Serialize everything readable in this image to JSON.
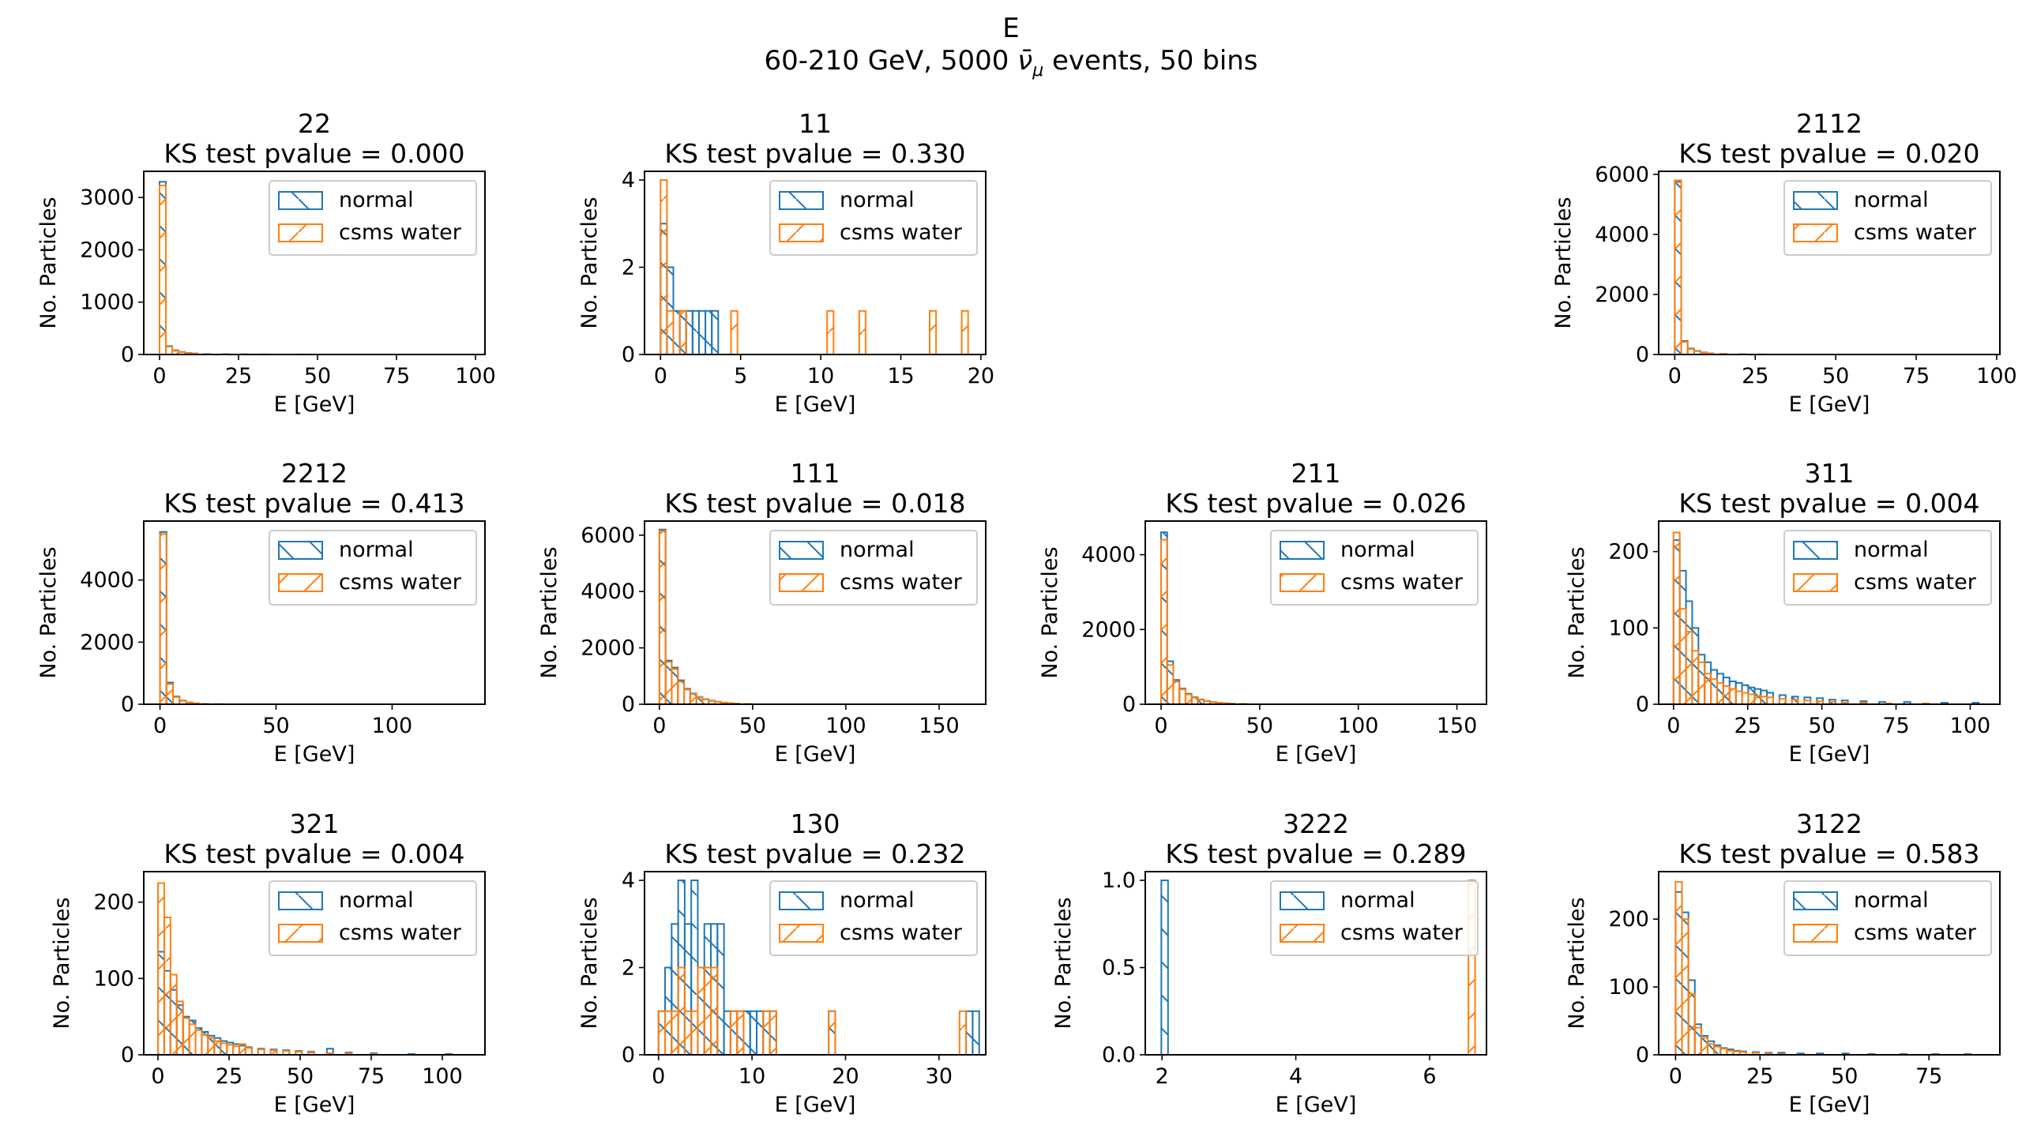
{
  "figure": {
    "title": "E",
    "subtitle_prefix": "60-210 GeV, 5000 ",
    "subtitle_symbol": "ν̄",
    "subtitle_symbol_sub": "μ",
    "subtitle_suffix": " events, 50 bins"
  },
  "colors": {
    "normal": "#1f77b4",
    "csms": "#ff7f0e"
  },
  "common": {
    "xlabel": "E [GeV]",
    "ylabel": "No. Particles",
    "legend": [
      "normal",
      "csms water"
    ]
  },
  "chart_data": [
    {
      "type": "histogram",
      "row": 0,
      "col": 0,
      "title": "22",
      "subtitle": "KS test pvalue = 0.000",
      "xlim": [
        -5,
        103
      ],
      "ylim": [
        0,
        3500
      ],
      "xticks": [
        0,
        25,
        50,
        75,
        100
      ],
      "xticklabels": [
        "0",
        "25",
        "50",
        "75",
        "100"
      ],
      "yticks": [
        0,
        1000,
        2000,
        3000
      ],
      "yticklabels": [
        "0",
        "1000",
        "2000",
        "3000"
      ],
      "series": [
        {
          "name": "normal",
          "x": [
            0,
            2,
            4,
            6,
            8,
            10,
            14,
            20,
            26,
            32,
            44
          ],
          "y": [
            3300,
            160,
            80,
            50,
            30,
            20,
            10,
            6,
            4,
            2,
            1
          ],
          "w": 2
        },
        {
          "name": "csms water",
          "x": [
            0,
            2,
            4,
            6,
            8,
            10,
            14,
            20,
            26,
            32
          ],
          "y": [
            3230,
            150,
            70,
            45,
            25,
            18,
            8,
            5,
            3,
            1
          ],
          "w": 2
        }
      ]
    },
    {
      "type": "histogram",
      "row": 0,
      "col": 1,
      "title": "11",
      "subtitle": "KS test pvalue = 0.330",
      "xlim": [
        -1,
        20.3
      ],
      "ylim": [
        0,
        4.2
      ],
      "xticks": [
        0,
        5,
        10,
        15,
        20
      ],
      "xticklabels": [
        "0",
        "5",
        "10",
        "15",
        "20"
      ],
      "yticks": [
        0,
        2,
        4
      ],
      "yticklabels": [
        "0",
        "2",
        "4"
      ],
      "series": [
        {
          "name": "normal",
          "x": [
            0,
            0.4,
            0.8,
            1.2,
            1.6,
            2.0,
            2.4,
            2.8,
            3.2
          ],
          "y": [
            3,
            2,
            1,
            1,
            1,
            1,
            1,
            1,
            1
          ],
          "w": 0.4
        },
        {
          "name": "csms water",
          "x": [
            0,
            0.4,
            1.2,
            4.4,
            10.4,
            12.4,
            16.8,
            18.8
          ],
          "y": [
            4,
            1,
            1,
            1,
            1,
            1,
            1,
            1
          ],
          "w": 0.4
        }
      ]
    },
    {
      "type": "histogram",
      "row": 0,
      "col": 3,
      "title": "2112",
      "subtitle": "KS test pvalue = 0.020",
      "xlim": [
        -5,
        101
      ],
      "ylim": [
        0,
        6100
      ],
      "xticks": [
        0,
        25,
        50,
        75,
        100
      ],
      "xticklabels": [
        "0",
        "25",
        "50",
        "75",
        "100"
      ],
      "yticks": [
        0,
        2000,
        4000,
        6000
      ],
      "yticklabels": [
        "0",
        "2000",
        "4000",
        "6000"
      ],
      "series": [
        {
          "name": "normal",
          "x": [
            0,
            2,
            4,
            6,
            8,
            10,
            14,
            20,
            26
          ],
          "y": [
            5750,
            450,
            200,
            120,
            70,
            40,
            20,
            8,
            3
          ],
          "w": 2
        },
        {
          "name": "csms water",
          "x": [
            0,
            2,
            4,
            6,
            8,
            10,
            14,
            20,
            26
          ],
          "y": [
            5800,
            420,
            180,
            110,
            60,
            35,
            15,
            6,
            2
          ],
          "w": 2
        }
      ]
    },
    {
      "type": "histogram",
      "row": 1,
      "col": 0,
      "title": "2212",
      "subtitle": "KS test pvalue = 0.413",
      "xlim": [
        -7,
        140
      ],
      "ylim": [
        0,
        5900
      ],
      "xticks": [
        0,
        50,
        100
      ],
      "xticklabels": [
        "0",
        "50",
        "100"
      ],
      "yticks": [
        0,
        2000,
        4000
      ],
      "yticklabels": [
        "0",
        "2000",
        "4000"
      ],
      "series": [
        {
          "name": "normal",
          "x": [
            0,
            2.8,
            5.6,
            8.4,
            11.2,
            14,
            18,
            24
          ],
          "y": [
            5550,
            700,
            250,
            120,
            60,
            30,
            12,
            4
          ],
          "w": 2.8
        },
        {
          "name": "csms water",
          "x": [
            0,
            2.8,
            5.6,
            8.4,
            11.2,
            14,
            18,
            24
          ],
          "y": [
            5480,
            650,
            230,
            110,
            55,
            25,
            10,
            3
          ],
          "w": 2.8
        }
      ]
    },
    {
      "type": "histogram",
      "row": 1,
      "col": 1,
      "title": "111",
      "subtitle": "KS test pvalue = 0.018",
      "xlim": [
        -8,
        175
      ],
      "ylim": [
        0,
        6500
      ],
      "xticks": [
        0,
        50,
        100,
        150
      ],
      "xticklabels": [
        "0",
        "50",
        "100",
        "150"
      ],
      "yticks": [
        0,
        2000,
        4000,
        6000
      ],
      "yticklabels": [
        "0",
        "2000",
        "4000",
        "6000"
      ],
      "series": [
        {
          "name": "normal",
          "x": [
            0,
            3.3,
            6.6,
            9.9,
            13.2,
            16.5,
            19.8,
            23.1,
            26.4,
            29.7,
            33,
            36.3,
            39.6,
            46
          ],
          "y": [
            6200,
            1550,
            1300,
            850,
            550,
            380,
            260,
            180,
            130,
            90,
            60,
            40,
            25,
            10
          ],
          "w": 3.3
        },
        {
          "name": "csms water",
          "x": [
            0,
            3.3,
            6.6,
            9.9,
            13.2,
            16.5,
            19.8,
            23.1,
            26.4,
            29.7,
            33,
            36.3,
            39.6,
            46
          ],
          "y": [
            6150,
            1500,
            1250,
            800,
            520,
            360,
            250,
            170,
            120,
            85,
            55,
            35,
            22,
            8
          ],
          "w": 3.3
        }
      ]
    },
    {
      "type": "histogram",
      "row": 1,
      "col": 2,
      "title": "211",
      "subtitle": "KS test pvalue = 0.026",
      "xlim": [
        -8,
        165
      ],
      "ylim": [
        0,
        4900
      ],
      "xticks": [
        0,
        50,
        100,
        150
      ],
      "xticklabels": [
        "0",
        "50",
        "100",
        "150"
      ],
      "yticks": [
        0,
        2000,
        4000
      ],
      "yticklabels": [
        "0",
        "2000",
        "4000"
      ],
      "series": [
        {
          "name": "normal",
          "x": [
            0,
            3.1,
            6.2,
            9.3,
            12.4,
            15.5,
            18.6,
            21.7,
            24.8,
            27.9,
            31,
            34.1,
            40
          ],
          "y": [
            4600,
            1150,
            650,
            420,
            280,
            190,
            130,
            90,
            60,
            40,
            28,
            18,
            8
          ],
          "w": 3.1
        },
        {
          "name": "csms water",
          "x": [
            0,
            3.1,
            6.2,
            9.3,
            12.4,
            15.5,
            18.6,
            21.7,
            24.8,
            27.9,
            31,
            34.1,
            40
          ],
          "y": [
            4400,
            1050,
            600,
            400,
            260,
            180,
            120,
            85,
            55,
            38,
            25,
            15,
            6
          ],
          "w": 3.1
        }
      ]
    },
    {
      "type": "histogram",
      "row": 1,
      "col": 3,
      "title": "311",
      "subtitle": "KS test pvalue = 0.004",
      "xlim": [
        -5,
        110
      ],
      "ylim": [
        0,
        240
      ],
      "xticks": [
        0,
        25,
        50,
        75,
        100
      ],
      "xticklabels": [
        "0",
        "25",
        "50",
        "75",
        "100"
      ],
      "yticks": [
        0,
        100,
        200
      ],
      "yticklabels": [
        "0",
        "100",
        "200"
      ],
      "series": [
        {
          "name": "normal",
          "x": [
            0,
            2.1,
            4.2,
            6.3,
            8.4,
            10.5,
            12.6,
            14.7,
            16.8,
            18.9,
            21,
            23.1,
            25.2,
            27.3,
            29.4,
            31.5,
            35.7,
            39.9,
            44.1,
            48.3,
            52.5,
            56.7,
            63,
            69.3,
            77.7,
            90.3,
            100.8
          ],
          "y": [
            215,
            175,
            135,
            100,
            65,
            55,
            45,
            40,
            35,
            30,
            28,
            25,
            22,
            20,
            18,
            15,
            12,
            10,
            9,
            8,
            6,
            5,
            4,
            3,
            3,
            2,
            2
          ],
          "w": 2.1
        },
        {
          "name": "csms water",
          "x": [
            0,
            2.1,
            4.2,
            6.3,
            8.4,
            10.5,
            12.6,
            14.7,
            16.8,
            18.9,
            21,
            23.1,
            25.2,
            27.3,
            29.4,
            31.5,
            35.7,
            39.9,
            44.1,
            48.3,
            52.5,
            56.7,
            63,
            71.4,
            84
          ],
          "y": [
            225,
            125,
            95,
            70,
            55,
            40,
            33,
            28,
            24,
            20,
            17,
            15,
            13,
            11,
            10,
            9,
            7,
            6,
            5,
            4,
            3,
            2,
            2,
            1,
            1
          ],
          "w": 2.1
        }
      ]
    },
    {
      "type": "histogram",
      "row": 2,
      "col": 0,
      "title": "321",
      "subtitle": "KS test pvalue = 0.004",
      "xlim": [
        -5,
        115
      ],
      "ylim": [
        0,
        240
      ],
      "xticks": [
        0,
        25,
        50,
        75,
        100
      ],
      "xticklabels": [
        "0",
        "25",
        "50",
        "75",
        "100"
      ],
      "yticks": [
        0,
        100,
        200
      ],
      "yticklabels": [
        "0",
        "100",
        "200"
      ],
      "series": [
        {
          "name": "normal",
          "x": [
            0,
            2.2,
            4.4,
            6.6,
            8.8,
            11,
            13.2,
            15.4,
            17.6,
            19.8,
            22,
            24.2,
            26.4,
            28.6,
            30.8,
            35.2,
            39.6,
            44,
            48.4,
            52.8,
            59.4,
            66,
            74.8,
            88,
            101.2
          ],
          "y": [
            135,
            110,
            85,
            65,
            50,
            45,
            35,
            30,
            25,
            22,
            18,
            16,
            14,
            12,
            10,
            8,
            7,
            6,
            5,
            4,
            8,
            3,
            2,
            1,
            1
          ],
          "w": 2.2
        },
        {
          "name": "csms water",
          "x": [
            0,
            2.2,
            4.4,
            6.6,
            8.8,
            11,
            13.2,
            15.4,
            17.6,
            19.8,
            22,
            24.2,
            26.4,
            28.6,
            30.8,
            35.2,
            39.6,
            44,
            48.4,
            52.8,
            59.4,
            66,
            74.8
          ],
          "y": [
            225,
            180,
            105,
            70,
            48,
            40,
            32,
            26,
            22,
            18,
            15,
            13,
            11,
            14,
            9,
            7,
            6,
            5,
            4,
            3,
            2,
            2,
            1
          ],
          "w": 2.2
        }
      ]
    },
    {
      "type": "histogram",
      "row": 2,
      "col": 1,
      "title": "130",
      "subtitle": "KS test pvalue = 0.232",
      "xlim": [
        -1.5,
        35
      ],
      "ylim": [
        0,
        4.2
      ],
      "xticks": [
        0,
        10,
        20,
        30
      ],
      "xticklabels": [
        "0",
        "10",
        "20",
        "30"
      ],
      "yticks": [
        0,
        2,
        4
      ],
      "yticklabels": [
        "0",
        "2",
        "4"
      ],
      "series": [
        {
          "name": "normal",
          "x": [
            0,
            0.7,
            1.4,
            2.1,
            2.8,
            3.5,
            4.2,
            4.9,
            5.6,
            6.3,
            7.0,
            7.7,
            8.4,
            9.1,
            9.8,
            10.5,
            11.2,
            11.9,
            18.2,
            32.9,
            33.6
          ],
          "y": [
            1,
            2,
            3,
            4,
            3,
            4,
            2,
            3,
            3,
            3,
            1,
            1,
            1,
            1,
            1,
            1,
            1,
            1,
            1,
            1,
            1
          ],
          "w": 0.7
        },
        {
          "name": "csms water",
          "x": [
            0,
            0.7,
            1.4,
            2.1,
            2.8,
            3.5,
            4.2,
            4.9,
            5.6,
            7.7,
            8.4,
            11.2,
            11.9,
            18.2,
            32.2
          ],
          "y": [
            1,
            1,
            1,
            2,
            1,
            1,
            2,
            2,
            2,
            1,
            1,
            1,
            1,
            1,
            1
          ],
          "w": 0.7
        }
      ]
    },
    {
      "type": "histogram",
      "row": 2,
      "col": 2,
      "title": "3222",
      "subtitle": "KS test pvalue = 0.289",
      "xlim": [
        1.75,
        6.85
      ],
      "ylim": [
        0,
        1.05
      ],
      "xticks": [
        2,
        4,
        6
      ],
      "xticklabels": [
        "2",
        "4",
        "6"
      ],
      "yticks": [
        0,
        0.5,
        1.0
      ],
      "yticklabels": [
        "0.0",
        "0.5",
        "1.0"
      ],
      "series": [
        {
          "name": "normal",
          "x": [
            1.99
          ],
          "y": [
            1
          ],
          "w": 0.1
        },
        {
          "name": "csms water",
          "x": [
            6.58
          ],
          "y": [
            1
          ],
          "w": 0.1
        }
      ]
    },
    {
      "type": "histogram",
      "row": 2,
      "col": 3,
      "title": "3122",
      "subtitle": "KS test pvalue = 0.583",
      "xlim": [
        -5,
        96
      ],
      "ylim": [
        0,
        270
      ],
      "xticks": [
        0,
        25,
        50,
        75
      ],
      "xticklabels": [
        "0",
        "25",
        "50",
        "75"
      ],
      "yticks": [
        0,
        100,
        200
      ],
      "yticklabels": [
        "0",
        "100",
        "200"
      ],
      "series": [
        {
          "name": "normal",
          "x": [
            0,
            1.9,
            3.8,
            5.7,
            7.6,
            9.5,
            11.4,
            13.3,
            15.2,
            17.1,
            19,
            22.8,
            26.6,
            30.4,
            36.1,
            41.8,
            49.4,
            57,
            66.5,
            76,
            85.5
          ],
          "y": [
            240,
            210,
            110,
            45,
            28,
            20,
            14,
            10,
            8,
            6,
            5,
            4,
            3,
            3,
            2,
            2,
            2,
            1,
            1,
            1,
            1
          ],
          "w": 1.9
        },
        {
          "name": "csms water",
          "x": [
            0,
            1.9,
            3.8,
            5.7,
            7.6,
            9.5,
            11.4,
            13.3,
            15.2,
            17.1,
            19,
            22.8,
            26.6,
            30.4
          ],
          "y": [
            255,
            200,
            90,
            40,
            25,
            16,
            12,
            9,
            6,
            5,
            4,
            3,
            2,
            1
          ],
          "w": 1.9
        }
      ]
    }
  ]
}
